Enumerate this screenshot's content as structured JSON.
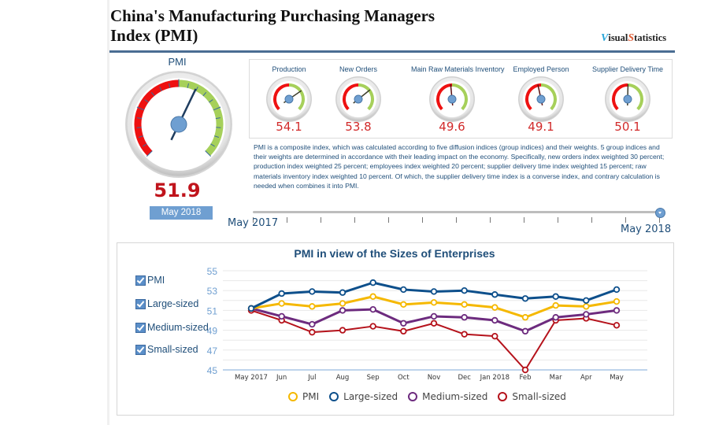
{
  "header": {
    "title": "China's Manufacturing Purchasing Managers Index (PMI)",
    "brand_v": "V",
    "brand_isual": "isual",
    "brand_s": "S",
    "brand_tatistics": "tatistics"
  },
  "main_gauge": {
    "label": "PMI",
    "value": "51.9",
    "date": "May 2018",
    "min": 40,
    "max": 60,
    "threshold": 50
  },
  "sub_gauges": [
    {
      "label": "Production",
      "value": "54.1"
    },
    {
      "label": "New Orders",
      "value": "53.8"
    },
    {
      "label": "Main Raw Materials Inventory",
      "value": "49.6"
    },
    {
      "label": "Employed Person",
      "value": "49.1"
    },
    {
      "label": "Supplier Delivery Time",
      "value": "50.1"
    }
  ],
  "description": "PMI is a composite index, which was calculated according to five diffusion indices (group indices) and their weights. 5 group indices and their weights are determined in accordance with their leading impact on the economy. Specifically, new orders index weighted 30 percent; production index weighted 25 percent; employees index weighted 20 percent; supplier delivery time index weighted 15 percent; raw materials inventory index weighted 10 percent. Of which, the supplier delivery time index is a converse index, and contrary calculation is needed when combines it into PMI.",
  "slider": {
    "start_label": "May 2017",
    "end_label": "May 2018",
    "steps": 13,
    "selected_index": 12
  },
  "filters": [
    {
      "label": "PMI",
      "checked": true
    },
    {
      "label": "Large-sized",
      "checked": true
    },
    {
      "label": "Medium-sized",
      "checked": true
    },
    {
      "label": "Small-sized",
      "checked": true
    }
  ],
  "colors": {
    "pmi": "#f5b800",
    "large": "#0d4f8b",
    "medium": "#6d2b7e",
    "small": "#b5121b",
    "gauge_red": "#ee1111",
    "gauge_green": "#a6d05a",
    "axis_text": "#6f9fd1"
  },
  "chart_data": {
    "type": "line",
    "title": "PMI in view of the Sizes of Enterprises",
    "xlabel": "",
    "ylabel": "",
    "ylim": [
      45,
      55
    ],
    "yticks": [
      45,
      47,
      49,
      51,
      53,
      55
    ],
    "grid": true,
    "legend_position": "bottom",
    "x": [
      "May 2017",
      "Jun",
      "Jul",
      "Aug",
      "Sep",
      "Oct",
      "Nov",
      "Dec",
      "Jan 2018",
      "Feb",
      "Mar",
      "Apr",
      "May"
    ],
    "series": [
      {
        "name": "PMI",
        "key": "pmi",
        "values": [
          51.2,
          51.7,
          51.4,
          51.7,
          52.4,
          51.6,
          51.8,
          51.6,
          51.3,
          50.3,
          51.5,
          51.4,
          51.9
        ]
      },
      {
        "name": "Large-sized",
        "key": "large",
        "values": [
          51.2,
          52.7,
          52.9,
          52.8,
          53.8,
          53.1,
          52.9,
          53.0,
          52.6,
          52.2,
          52.4,
          52.0,
          53.1
        ]
      },
      {
        "name": "Medium-sized",
        "key": "medium",
        "values": [
          51.2,
          50.4,
          49.6,
          51.0,
          51.1,
          49.7,
          50.4,
          50.3,
          50.0,
          48.9,
          50.3,
          50.6,
          51.0
        ]
      },
      {
        "name": "Small-sized",
        "key": "small",
        "values": [
          51.0,
          50.0,
          48.8,
          49.0,
          49.4,
          48.9,
          49.7,
          48.6,
          48.4,
          45.0,
          50.0,
          50.2,
          49.5
        ]
      }
    ]
  }
}
